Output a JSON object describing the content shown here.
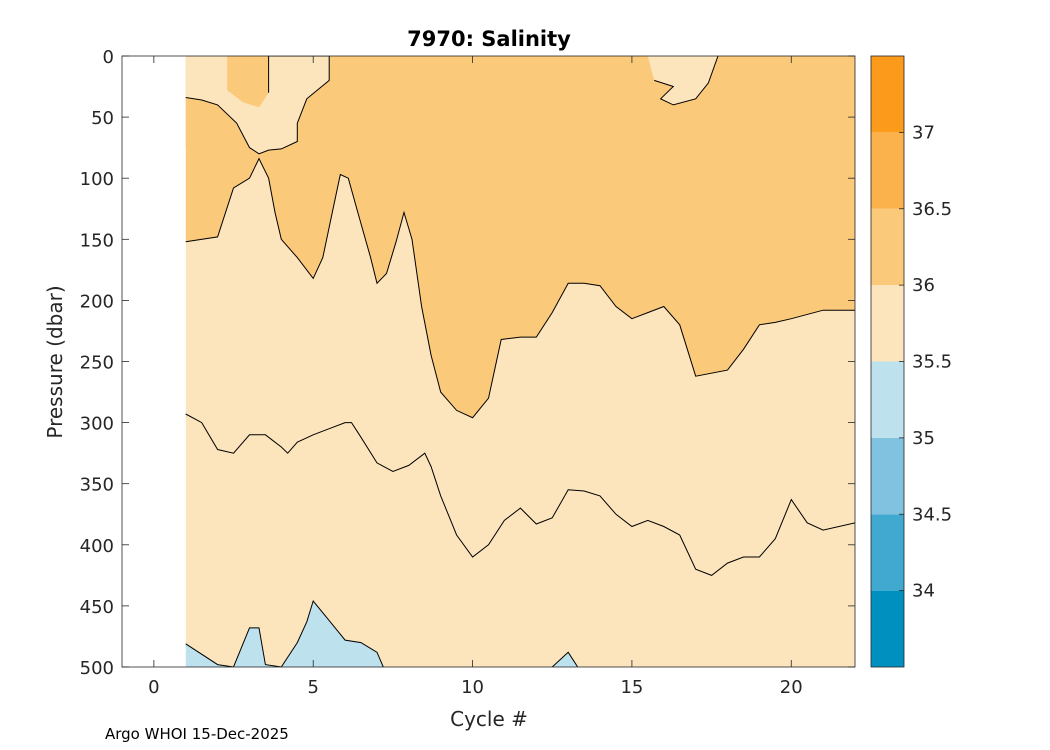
{
  "chart_data": {
    "type": "contour",
    "title": "7970:  Salinity",
    "xlabel": "Cycle #",
    "ylabel": "Pressure (dbar)",
    "xlim": [
      -1,
      22
    ],
    "ylim": [
      500,
      0
    ],
    "x_ticks": [
      0,
      5,
      10,
      15,
      20
    ],
    "y_ticks": [
      0,
      50,
      100,
      150,
      200,
      250,
      300,
      350,
      400,
      450,
      500
    ],
    "data_x_range": [
      1,
      22
    ],
    "colorbar": {
      "levels": [
        33.5,
        34,
        34.5,
        35,
        35.5,
        36,
        36.5,
        37,
        37.5
      ],
      "tick_labels": [
        "34",
        "34.5",
        "35",
        "35.5",
        "36",
        "36.5",
        "37"
      ],
      "colors": [
        "#0090bf",
        "#41a8cf",
        "#80c2e0",
        "#bde1ed",
        "#fce5bd",
        "#fbc97a",
        "#fbb24c",
        "#fb9a1b"
      ]
    },
    "contour_lines": [
      {
        "name": "36.0 isohaline (upper boundary between 35.5 and 36)",
        "level": 36.0,
        "points": [
          [
            1,
            152
          ],
          [
            2,
            148
          ],
          [
            2.5,
            108
          ],
          [
            3,
            100
          ],
          [
            3.3,
            84
          ],
          [
            3.6,
            100
          ],
          [
            3.8,
            128
          ],
          [
            4,
            150
          ],
          [
            4.5,
            165
          ],
          [
            5,
            182
          ],
          [
            5.3,
            165
          ],
          [
            5.6,
            128
          ],
          [
            5.85,
            97
          ],
          [
            6.1,
            100
          ],
          [
            6.4,
            128
          ],
          [
            6.8,
            165
          ],
          [
            7,
            186
          ],
          [
            7.3,
            178
          ],
          [
            7.6,
            152
          ],
          [
            7.85,
            128
          ],
          [
            8.1,
            150
          ],
          [
            8.4,
            205
          ],
          [
            8.7,
            245
          ],
          [
            9,
            275
          ],
          [
            9.5,
            290
          ],
          [
            10,
            296
          ],
          [
            10.5,
            280
          ],
          [
            10.9,
            232
          ],
          [
            11.5,
            230
          ],
          [
            12,
            230
          ],
          [
            12.5,
            210
          ],
          [
            13,
            186
          ],
          [
            13.5,
            186
          ],
          [
            14,
            188
          ],
          [
            14.5,
            205
          ],
          [
            15,
            215
          ],
          [
            15.5,
            210
          ],
          [
            16,
            205
          ],
          [
            16.5,
            220
          ],
          [
            17,
            262
          ],
          [
            18,
            257
          ],
          [
            18.5,
            240
          ],
          [
            19,
            220
          ],
          [
            19.5,
            218
          ],
          [
            20,
            215
          ],
          [
            21,
            208
          ],
          [
            22,
            208
          ]
        ]
      },
      {
        "name": "35.5 isohaline (upper)",
        "level": 35.5,
        "points": [
          [
            1,
            293
          ],
          [
            1.5,
            300
          ],
          [
            2,
            322
          ],
          [
            2.5,
            325
          ],
          [
            3,
            310
          ],
          [
            3.5,
            310
          ],
          [
            4,
            320
          ],
          [
            4.2,
            325
          ],
          [
            4.5,
            316
          ],
          [
            5,
            310
          ],
          [
            5.5,
            305
          ],
          [
            6,
            300
          ],
          [
            6.2,
            300
          ],
          [
            6.5,
            312
          ],
          [
            7,
            333
          ],
          [
            7.5,
            340
          ],
          [
            8,
            335
          ],
          [
            8.5,
            325
          ],
          [
            8.7,
            336
          ],
          [
            9,
            360
          ],
          [
            9.5,
            392
          ],
          [
            10,
            410
          ],
          [
            10.5,
            400
          ],
          [
            11,
            380
          ],
          [
            11.5,
            370
          ],
          [
            12,
            383
          ],
          [
            12.5,
            378
          ],
          [
            13,
            355
          ],
          [
            13.5,
            356
          ],
          [
            14,
            360
          ],
          [
            14.5,
            375
          ],
          [
            15,
            385
          ],
          [
            15.5,
            380
          ],
          [
            16,
            385
          ],
          [
            16.5,
            392
          ],
          [
            17,
            420
          ],
          [
            17.5,
            425
          ],
          [
            18,
            415
          ],
          [
            18.5,
            410
          ],
          [
            19,
            410
          ],
          [
            19.5,
            395
          ],
          [
            20,
            363
          ],
          [
            20.5,
            382
          ],
          [
            21,
            388
          ],
          [
            22,
            382
          ]
        ]
      },
      {
        "name": "35.0 isohaline (lower left)",
        "level": 35.0,
        "points": [
          [
            1,
            481
          ],
          [
            2,
            498
          ],
          [
            2.5,
            500
          ],
          [
            3,
            468
          ],
          [
            3.3,
            468
          ],
          [
            3.5,
            498
          ],
          [
            4,
            500
          ],
          [
            4.5,
            480
          ],
          [
            4.8,
            463
          ],
          [
            5,
            446
          ],
          [
            5.5,
            462
          ],
          [
            6,
            478
          ],
          [
            6.5,
            480
          ],
          [
            7,
            488
          ],
          [
            7.2,
            500
          ]
        ]
      },
      {
        "name": "35.0 isohaline (lower right)",
        "level": 35.0,
        "points": [
          [
            12.5,
            500
          ],
          [
            13,
            488
          ],
          [
            13.3,
            500
          ]
        ]
      }
    ]
  },
  "footer_text": "Argo WHOI 15-Dec-2025"
}
